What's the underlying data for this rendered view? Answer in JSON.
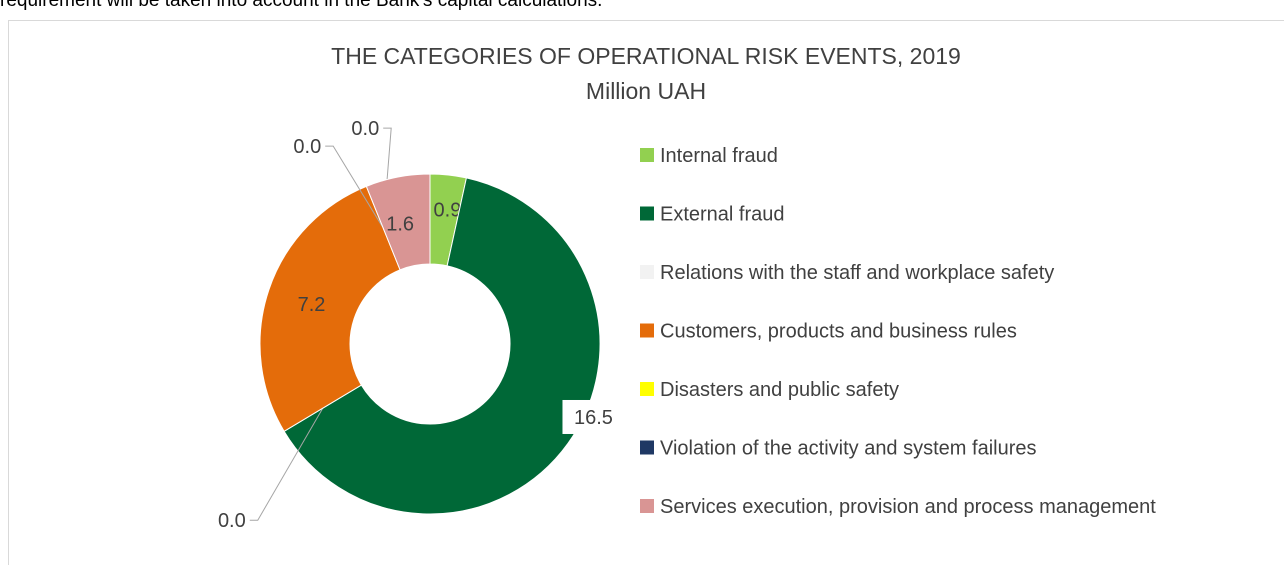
{
  "top_text": "requirement will be taken into account in the Bank's capital calculations.",
  "chart_data": {
    "type": "donut",
    "title": "THE CATEGORIES OF OPERATIONAL RISK EVENTS, 2019",
    "subtitle": "Million UAH",
    "categories": [
      "Internal fraud",
      "External fraud",
      "Relations with the staff and workplace safety",
      "Customers, products and business rules",
      "Disasters and public safety",
      "Violation of the activity and system failures",
      "Services execution, provision and process management"
    ],
    "values": [
      0.9,
      16.5,
      0,
      7.2,
      0,
      0,
      1.6
    ],
    "value_labels": [
      "0.9",
      "16.5",
      "0.0",
      "7.2",
      "0.0",
      "0.0",
      "1.6"
    ],
    "colors": [
      "#92d050",
      "#006837",
      "#f2f2f2",
      "#e46c0a",
      "#ffff00",
      "#1f3864",
      "#d99594"
    ],
    "legend": "right"
  }
}
